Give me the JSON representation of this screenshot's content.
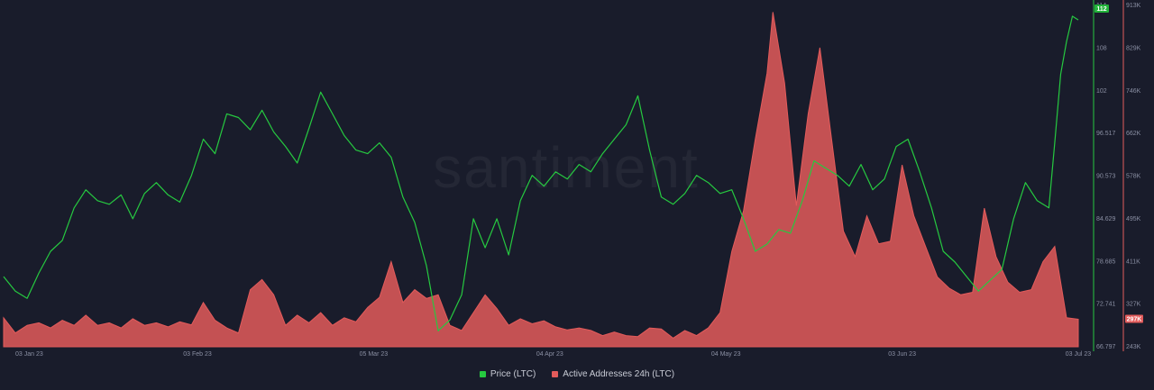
{
  "watermark": "santiment",
  "colors": {
    "background": "#191c2b",
    "price": "#26c940",
    "addresses": "#e35b5b",
    "price_badge": "#22b33a",
    "addresses_badge": "#e35b5b"
  },
  "legend": [
    {
      "label": "Price (LTC)",
      "color": "#26c940"
    },
    {
      "label": "Active Addresses 24h (LTC)",
      "color": "#e35b5b"
    }
  ],
  "chart_data": {
    "type": "line",
    "title": "",
    "x_ticks": [
      "03 Jan 23",
      "03 Feb 23",
      "05 Mar 23",
      "04 Apr 23",
      "04 May 23",
      "03 Jun 23",
      "03 Jul 23"
    ],
    "x_range": [
      "2023-01-01",
      "2023-07-03"
    ],
    "y_price_ticks": [
      "114",
      "108",
      "102",
      "96.517",
      "90.573",
      "84.629",
      "78.685",
      "72.741",
      "66.797"
    ],
    "y_price_range": [
      66.797,
      114
    ],
    "y_addresses_ticks": [
      "913K",
      "829K",
      "746K",
      "662K",
      "578K",
      "495K",
      "411K",
      "327K",
      "243K"
    ],
    "y_addresses_range": [
      243000,
      913000
    ],
    "current_price_label": "112",
    "current_addresses_label": "297K",
    "series": [
      {
        "name": "Price (LTC)",
        "axis": "left",
        "style": "line",
        "points": [
          [
            "2023-01-01",
            76.5
          ],
          [
            "2023-01-03",
            74.5
          ],
          [
            "2023-01-05",
            73.5
          ],
          [
            "2023-01-07",
            77.0
          ],
          [
            "2023-01-09",
            80.0
          ],
          [
            "2023-01-11",
            81.5
          ],
          [
            "2023-01-13",
            86.0
          ],
          [
            "2023-01-15",
            88.5
          ],
          [
            "2023-01-17",
            87.0
          ],
          [
            "2023-01-19",
            86.5
          ],
          [
            "2023-01-21",
            87.8
          ],
          [
            "2023-01-23",
            84.5
          ],
          [
            "2023-01-25",
            88.0
          ],
          [
            "2023-01-27",
            89.5
          ],
          [
            "2023-01-29",
            87.8
          ],
          [
            "2023-01-31",
            86.8
          ],
          [
            "2023-02-02",
            90.5
          ],
          [
            "2023-02-04",
            95.5
          ],
          [
            "2023-02-06",
            93.5
          ],
          [
            "2023-02-08",
            99.0
          ],
          [
            "2023-02-10",
            98.5
          ],
          [
            "2023-02-12",
            96.8
          ],
          [
            "2023-02-14",
            99.5
          ],
          [
            "2023-02-16",
            96.5
          ],
          [
            "2023-02-18",
            94.5
          ],
          [
            "2023-02-20",
            92.2
          ],
          [
            "2023-02-22",
            97.0
          ],
          [
            "2023-02-24",
            102.0
          ],
          [
            "2023-02-26",
            99.0
          ],
          [
            "2023-02-28",
            96.0
          ],
          [
            "2023-03-02",
            94.0
          ],
          [
            "2023-03-04",
            93.5
          ],
          [
            "2023-03-06",
            95.0
          ],
          [
            "2023-03-08",
            93.0
          ],
          [
            "2023-03-10",
            87.5
          ],
          [
            "2023-03-12",
            84.0
          ],
          [
            "2023-03-14",
            78.0
          ],
          [
            "2023-03-15",
            73.5
          ],
          [
            "2023-03-16",
            69.0
          ],
          [
            "2023-03-18",
            70.5
          ],
          [
            "2023-03-20",
            74.0
          ],
          [
            "2023-03-22",
            84.5
          ],
          [
            "2023-03-24",
            80.5
          ],
          [
            "2023-03-26",
            84.5
          ],
          [
            "2023-03-28",
            79.5
          ],
          [
            "2023-03-30",
            87.0
          ],
          [
            "2023-04-01",
            90.5
          ],
          [
            "2023-04-03",
            89.0
          ],
          [
            "2023-04-05",
            91.0
          ],
          [
            "2023-04-07",
            90.0
          ],
          [
            "2023-04-09",
            92.0
          ],
          [
            "2023-04-11",
            91.0
          ],
          [
            "2023-04-13",
            93.5
          ],
          [
            "2023-04-15",
            95.5
          ],
          [
            "2023-04-17",
            97.5
          ],
          [
            "2023-04-19",
            101.5
          ],
          [
            "2023-04-21",
            94.0
          ],
          [
            "2023-04-23",
            87.5
          ],
          [
            "2023-04-25",
            86.5
          ],
          [
            "2023-04-27",
            88.0
          ],
          [
            "2023-04-29",
            90.5
          ],
          [
            "2023-05-01",
            89.5
          ],
          [
            "2023-05-03",
            88.0
          ],
          [
            "2023-05-05",
            88.5
          ],
          [
            "2023-05-07",
            84.5
          ],
          [
            "2023-05-09",
            80.0
          ],
          [
            "2023-05-11",
            81.0
          ],
          [
            "2023-05-13",
            83.0
          ],
          [
            "2023-05-15",
            82.5
          ],
          [
            "2023-05-17",
            87.0
          ],
          [
            "2023-05-19",
            92.5
          ],
          [
            "2023-05-21",
            91.5
          ],
          [
            "2023-05-23",
            90.5
          ],
          [
            "2023-05-25",
            89.0
          ],
          [
            "2023-05-27",
            92.0
          ],
          [
            "2023-05-29",
            88.5
          ],
          [
            "2023-05-31",
            90.0
          ],
          [
            "2023-06-02",
            94.5
          ],
          [
            "2023-06-04",
            95.5
          ],
          [
            "2023-06-06",
            91.0
          ],
          [
            "2023-06-08",
            86.0
          ],
          [
            "2023-06-10",
            80.0
          ],
          [
            "2023-06-12",
            78.5
          ],
          [
            "2023-06-14",
            76.5
          ],
          [
            "2023-06-16",
            74.5
          ],
          [
            "2023-06-18",
            76.0
          ],
          [
            "2023-06-20",
            77.5
          ],
          [
            "2023-06-22",
            84.5
          ],
          [
            "2023-06-24",
            89.5
          ],
          [
            "2023-06-26",
            87.0
          ],
          [
            "2023-06-28",
            86.0
          ],
          [
            "2023-06-29",
            95.0
          ],
          [
            "2023-06-30",
            104.5
          ],
          [
            "2023-07-01",
            109.0
          ],
          [
            "2023-07-02",
            112.5
          ],
          [
            "2023-07-03",
            112.0
          ]
        ]
      },
      {
        "name": "Active Addresses 24h (LTC)",
        "axis": "right",
        "style": "area",
        "points": [
          [
            "2023-01-01",
            300000
          ],
          [
            "2023-01-03",
            270000
          ],
          [
            "2023-01-05",
            285000
          ],
          [
            "2023-01-07",
            290000
          ],
          [
            "2023-01-09",
            280000
          ],
          [
            "2023-01-11",
            295000
          ],
          [
            "2023-01-13",
            285000
          ],
          [
            "2023-01-15",
            305000
          ],
          [
            "2023-01-17",
            285000
          ],
          [
            "2023-01-19",
            290000
          ],
          [
            "2023-01-21",
            280000
          ],
          [
            "2023-01-23",
            298000
          ],
          [
            "2023-01-25",
            285000
          ],
          [
            "2023-01-27",
            290000
          ],
          [
            "2023-01-29",
            282000
          ],
          [
            "2023-01-31",
            292000
          ],
          [
            "2023-02-02",
            286000
          ],
          [
            "2023-02-04",
            330000
          ],
          [
            "2023-02-06",
            295000
          ],
          [
            "2023-02-08",
            280000
          ],
          [
            "2023-02-10",
            270000
          ],
          [
            "2023-02-12",
            355000
          ],
          [
            "2023-02-14",
            375000
          ],
          [
            "2023-02-16",
            345000
          ],
          [
            "2023-02-18",
            285000
          ],
          [
            "2023-02-20",
            305000
          ],
          [
            "2023-02-22",
            290000
          ],
          [
            "2023-02-24",
            310000
          ],
          [
            "2023-02-26",
            285000
          ],
          [
            "2023-02-28",
            300000
          ],
          [
            "2023-03-02",
            292000
          ],
          [
            "2023-03-04",
            320000
          ],
          [
            "2023-03-06",
            340000
          ],
          [
            "2023-03-08",
            410000
          ],
          [
            "2023-03-10",
            330000
          ],
          [
            "2023-03-12",
            355000
          ],
          [
            "2023-03-14",
            338000
          ],
          [
            "2023-03-16",
            345000
          ],
          [
            "2023-03-18",
            285000
          ],
          [
            "2023-03-20",
            275000
          ],
          [
            "2023-03-22",
            310000
          ],
          [
            "2023-03-24",
            345000
          ],
          [
            "2023-03-26",
            318000
          ],
          [
            "2023-03-28",
            285000
          ],
          [
            "2023-03-30",
            298000
          ],
          [
            "2023-04-01",
            288000
          ],
          [
            "2023-04-03",
            294000
          ],
          [
            "2023-04-05",
            282000
          ],
          [
            "2023-04-07",
            276000
          ],
          [
            "2023-04-09",
            280000
          ],
          [
            "2023-04-11",
            275000
          ],
          [
            "2023-04-13",
            265000
          ],
          [
            "2023-04-15",
            272000
          ],
          [
            "2023-04-17",
            265000
          ],
          [
            "2023-04-19",
            263000
          ],
          [
            "2023-04-21",
            280000
          ],
          [
            "2023-04-23",
            278000
          ],
          [
            "2023-04-25",
            260000
          ],
          [
            "2023-04-27",
            275000
          ],
          [
            "2023-04-29",
            265000
          ],
          [
            "2023-05-01",
            280000
          ],
          [
            "2023-05-03",
            310000
          ],
          [
            "2023-05-05",
            430000
          ],
          [
            "2023-05-07",
            510000
          ],
          [
            "2023-05-09",
            650000
          ],
          [
            "2023-05-11",
            780000
          ],
          [
            "2023-05-12",
            900000
          ],
          [
            "2023-05-14",
            760000
          ],
          [
            "2023-05-16",
            520000
          ],
          [
            "2023-05-18",
            700000
          ],
          [
            "2023-05-20",
            830000
          ],
          [
            "2023-05-22",
            650000
          ],
          [
            "2023-05-24",
            470000
          ],
          [
            "2023-05-26",
            420000
          ],
          [
            "2023-05-28",
            500000
          ],
          [
            "2023-05-30",
            445000
          ],
          [
            "2023-06-01",
            450000
          ],
          [
            "2023-06-03",
            600000
          ],
          [
            "2023-06-05",
            500000
          ],
          [
            "2023-06-07",
            440000
          ],
          [
            "2023-06-09",
            380000
          ],
          [
            "2023-06-11",
            358000
          ],
          [
            "2023-06-13",
            345000
          ],
          [
            "2023-06-15",
            350000
          ],
          [
            "2023-06-17",
            515000
          ],
          [
            "2023-06-19",
            420000
          ],
          [
            "2023-06-21",
            370000
          ],
          [
            "2023-06-23",
            350000
          ],
          [
            "2023-06-25",
            355000
          ],
          [
            "2023-06-27",
            410000
          ],
          [
            "2023-06-29",
            440000
          ],
          [
            "2023-07-01",
            300000
          ],
          [
            "2023-07-03",
            297000
          ]
        ]
      }
    ]
  }
}
